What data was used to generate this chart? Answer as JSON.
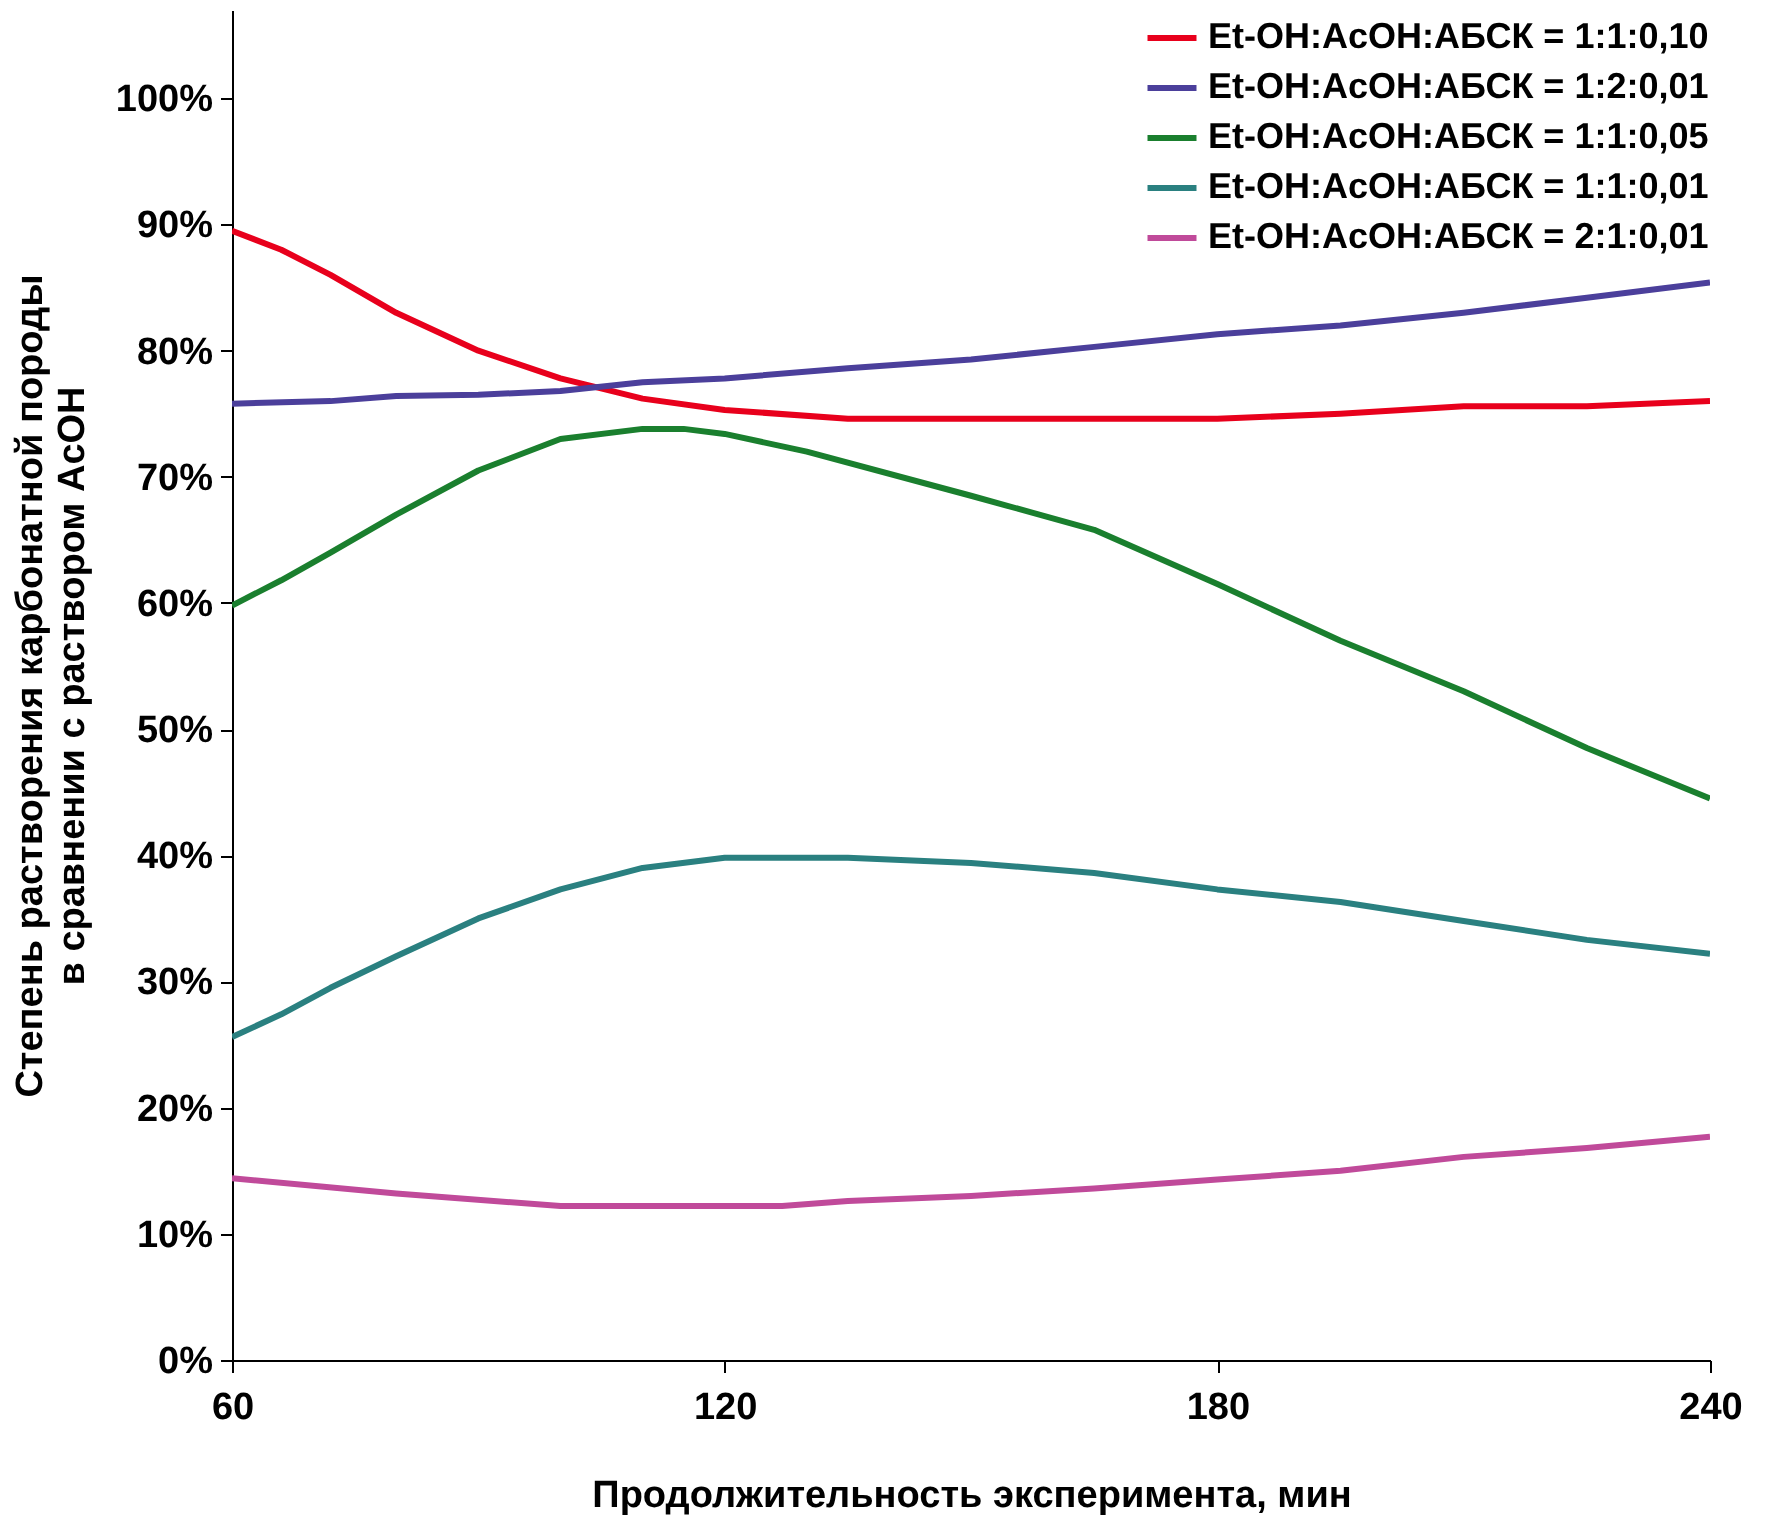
{
  "chart_data": {
    "type": "line",
    "xlabel": "Продолжительность эксперимента, мин",
    "ylabel": "Степень растворения карбонатной породы\nв сравнении с раствором AcOH",
    "xlim": [
      60,
      240
    ],
    "xticks": [
      60,
      120,
      180,
      240
    ],
    "ylim": [
      0,
      107
    ],
    "yticks": [
      {
        "value": 0,
        "label": "0%"
      },
      {
        "value": 10,
        "label": "10%"
      },
      {
        "value": 20,
        "label": "20%"
      },
      {
        "value": 30,
        "label": "30%"
      },
      {
        "value": 40,
        "label": "40%"
      },
      {
        "value": 50,
        "label": "50%"
      },
      {
        "value": 60,
        "label": "60%"
      },
      {
        "value": 70,
        "label": "70%"
      },
      {
        "value": 80,
        "label": "80%"
      },
      {
        "value": 90,
        "label": "90%"
      },
      {
        "value": 100,
        "label": "100%"
      }
    ],
    "grid": false,
    "legend": "top right",
    "marker": "none",
    "line_style": "solid",
    "series": [
      {
        "name": "Et-OH:AcOH:АБСК = 1:1:0,10",
        "color": "#e8001c",
        "x": [
          60,
          66,
          72,
          80,
          90,
          100,
          110,
          120,
          135,
          150,
          165,
          180,
          195,
          210,
          225,
          240
        ],
        "values": [
          89.5,
          88,
          86,
          83,
          80,
          77.8,
          76.2,
          75.3,
          74.6,
          74.6,
          74.6,
          74.6,
          75,
          75.6,
          75.6,
          76
        ]
      },
      {
        "name": "Et-OH:AcOH:АБСК = 1:2:0,01",
        "color": "#4b3f9b",
        "x": [
          60,
          72,
          80,
          90,
          100,
          110,
          120,
          135,
          150,
          165,
          180,
          195,
          210,
          225,
          240
        ],
        "values": [
          75.8,
          76,
          76.4,
          76.5,
          76.8,
          77.5,
          77.8,
          78.6,
          79.3,
          80.3,
          81.3,
          82,
          83,
          84.2,
          85.4
        ]
      },
      {
        "name": "Et-OH:AcOH:АБСК = 1:1:0,05",
        "color": "#1a7f2e",
        "x": [
          60,
          66,
          72,
          80,
          90,
          100,
          110,
          115,
          120,
          130,
          150,
          165,
          180,
          195,
          210,
          225,
          240
        ],
        "values": [
          59.8,
          61.8,
          64,
          67,
          70.5,
          73,
          73.8,
          73.8,
          73.4,
          72,
          68.5,
          65.8,
          61.5,
          57,
          53,
          48.5,
          44.5
        ]
      },
      {
        "name": "Et-OH:AcOH:АБСК = 1:1:0,01",
        "color": "#2a8080",
        "x": [
          60,
          66,
          72,
          80,
          90,
          100,
          110,
          120,
          135,
          150,
          165,
          180,
          195,
          210,
          225,
          240
        ],
        "values": [
          25.6,
          27.4,
          29.5,
          32,
          35,
          37.3,
          39,
          39.8,
          39.8,
          39.4,
          38.6,
          37.3,
          36.3,
          34.8,
          33.3,
          32.2
        ]
      },
      {
        "name": "Et-OH:AcOH:АБСК = 2:1:0,01",
        "color": "#c04a9a",
        "x": [
          60,
          80,
          100,
          120,
          127,
          135,
          150,
          165,
          180,
          195,
          210,
          225,
          240
        ],
        "values": [
          14.4,
          13.2,
          12.2,
          12.2,
          12.2,
          12.6,
          13,
          13.6,
          14.3,
          15,
          16.1,
          16.8,
          17.7
        ]
      }
    ]
  }
}
